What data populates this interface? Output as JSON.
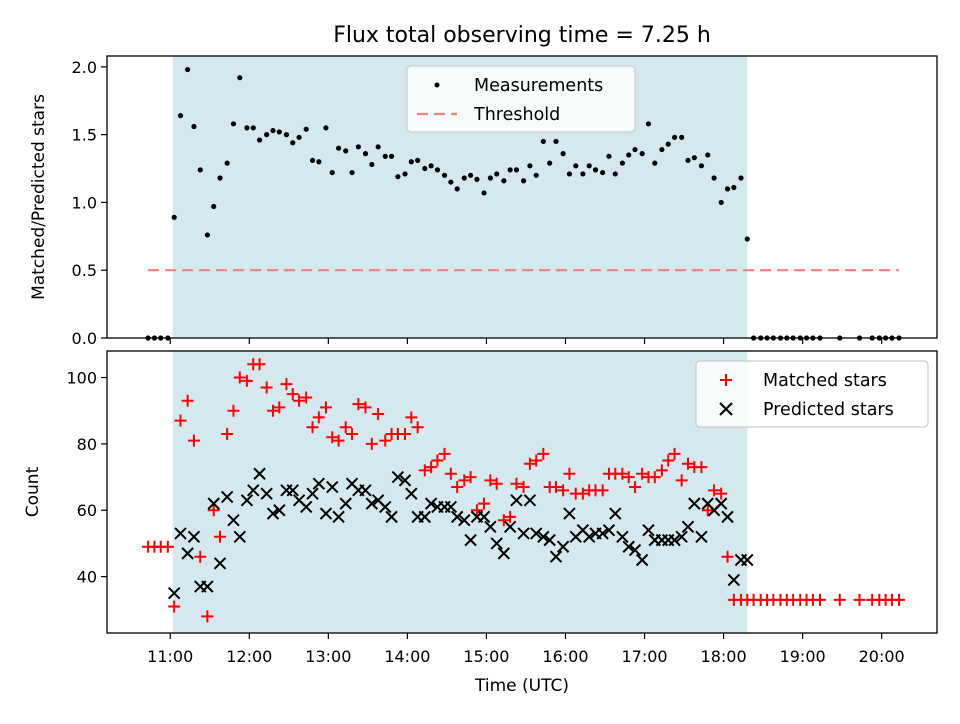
{
  "chart_data": {
    "type": "scatter",
    "title": "Flux total observing time = 7.25 h",
    "xlabel": "Time (UTC)",
    "x_ticks": [
      "11:00",
      "12:00",
      "13:00",
      "14:00",
      "15:00",
      "16:00",
      "17:00",
      "18:00",
      "19:00",
      "20:00"
    ],
    "x_range_hours": [
      10.2,
      20.7
    ],
    "observing_window_hours": [
      11.03,
      18.3
    ],
    "shade_color": "#d3e9ef",
    "panels": [
      {
        "ylabel": "Matched/Predicted stars",
        "ylim": [
          0,
          2.08
        ],
        "y_ticks": [
          "0.0",
          "0.5",
          "1.0",
          "1.5",
          "2.0"
        ],
        "legend_position": "upper center",
        "threshold": {
          "name": "Threshold",
          "value": 0.5,
          "color": "#f47d7d",
          "x_range": [
            10.72,
            20.22
          ]
        },
        "series": [
          {
            "name": "Measurements",
            "marker": "dot",
            "color": "#000000",
            "x": [
              10.72,
              10.8,
              10.88,
              10.97,
              11.05,
              11.13,
              11.22,
              11.3,
              11.38,
              11.47,
              11.55,
              11.63,
              11.72,
              11.8,
              11.88,
              11.97,
              12.05,
              12.13,
              12.22,
              12.3,
              12.38,
              12.47,
              12.55,
              12.63,
              12.72,
              12.8,
              12.88,
              12.97,
              13.05,
              13.13,
              13.22,
              13.3,
              13.38,
              13.47,
              13.55,
              13.63,
              13.72,
              13.8,
              13.88,
              13.97,
              14.05,
              14.13,
              14.22,
              14.3,
              14.38,
              14.47,
              14.55,
              14.63,
              14.72,
              14.8,
              14.88,
              14.97,
              15.05,
              15.13,
              15.22,
              15.3,
              15.38,
              15.47,
              15.55,
              15.63,
              15.72,
              15.8,
              15.88,
              15.97,
              16.05,
              16.13,
              16.22,
              16.3,
              16.38,
              16.47,
              16.55,
              16.63,
              16.72,
              16.8,
              16.88,
              16.97,
              17.05,
              17.13,
              17.22,
              17.3,
              17.38,
              17.47,
              17.55,
              17.63,
              17.72,
              17.8,
              17.88,
              17.97,
              18.05,
              18.13,
              18.22,
              18.3,
              18.38,
              18.47,
              18.55,
              18.63,
              18.72,
              18.8,
              18.88,
              18.97,
              19.05,
              19.13,
              19.22,
              19.47,
              19.72,
              19.88,
              19.97,
              20.05,
              20.13,
              20.22
            ],
            "y": [
              0,
              0,
              0,
              0,
              0.89,
              1.64,
              1.98,
              1.56,
              1.24,
              0.76,
              0.97,
              1.18,
              1.29,
              1.58,
              1.92,
              1.55,
              1.55,
              1.46,
              1.5,
              1.53,
              1.52,
              1.5,
              1.44,
              1.48,
              1.54,
              1.31,
              1.3,
              1.55,
              1.22,
              1.4,
              1.38,
              1.22,
              1.41,
              1.36,
              1.28,
              1.41,
              1.34,
              1.34,
              1.19,
              1.21,
              1.3,
              1.31,
              1.25,
              1.27,
              1.24,
              1.2,
              1.15,
              1.1,
              1.18,
              1.2,
              1.17,
              1.07,
              1.18,
              1.21,
              1.16,
              1.24,
              1.24,
              1.16,
              1.27,
              1.2,
              1.45,
              1.29,
              1.45,
              1.36,
              1.21,
              1.27,
              1.21,
              1.27,
              1.24,
              1.22,
              1.34,
              1.21,
              1.29,
              1.35,
              1.39,
              1.36,
              1.58,
              1.29,
              1.39,
              1.43,
              1.48,
              1.48,
              1.31,
              1.33,
              1.27,
              1.35,
              1.18,
              1.0,
              1.1,
              1.11,
              1.18,
              0.73,
              0,
              0,
              0,
              0,
              0,
              0,
              0,
              0,
              0,
              0,
              0,
              0,
              0,
              0,
              0,
              0,
              0,
              0
            ]
          }
        ]
      },
      {
        "ylabel": "Count",
        "ylim": [
          23,
          108
        ],
        "y_ticks": [
          "40",
          "60",
          "80",
          "100"
        ],
        "legend_position": "upper right",
        "series": [
          {
            "name": "Matched stars",
            "marker": "plus",
            "color": "#ff0000",
            "x": [
              10.72,
              10.8,
              10.88,
              10.97,
              11.05,
              11.13,
              11.22,
              11.3,
              11.38,
              11.47,
              11.55,
              11.63,
              11.72,
              11.8,
              11.88,
              11.97,
              12.05,
              12.13,
              12.22,
              12.3,
              12.38,
              12.47,
              12.55,
              12.63,
              12.72,
              12.8,
              12.88,
              12.97,
              13.05,
              13.13,
              13.22,
              13.3,
              13.38,
              13.47,
              13.55,
              13.63,
              13.72,
              13.8,
              13.88,
              13.97,
              14.05,
              14.13,
              14.22,
              14.3,
              14.38,
              14.47,
              14.55,
              14.63,
              14.72,
              14.8,
              14.88,
              14.97,
              15.05,
              15.13,
              15.22,
              15.3,
              15.38,
              15.47,
              15.55,
              15.63,
              15.72,
              15.8,
              15.88,
              15.97,
              16.05,
              16.13,
              16.22,
              16.3,
              16.38,
              16.47,
              16.55,
              16.63,
              16.72,
              16.8,
              16.88,
              16.97,
              17.05,
              17.13,
              17.22,
              17.3,
              17.38,
              17.47,
              17.55,
              17.63,
              17.72,
              17.8,
              17.88,
              17.97,
              18.05,
              18.13,
              18.22,
              18.3,
              18.38,
              18.47,
              18.55,
              18.63,
              18.72,
              18.8,
              18.88,
              18.97,
              19.05,
              19.13,
              19.22,
              19.47,
              19.72,
              19.88,
              19.97,
              20.05,
              20.13,
              20.22
            ],
            "y": [
              49,
              49,
              49,
              49,
              31,
              87,
              93,
              81,
              46,
              28,
              60,
              52,
              83,
              90,
              100,
              99,
              104,
              104,
              97,
              90,
              91,
              98,
              95,
              93,
              94,
              85,
              88,
              91,
              82,
              81,
              85,
              83,
              92,
              91,
              80,
              89,
              81,
              83,
              83,
              83,
              88,
              85,
              72,
              73,
              75,
              77,
              71,
              67,
              69,
              70,
              60,
              62,
              69,
              68,
              57,
              58,
              68,
              67,
              74,
              75,
              77,
              67,
              67,
              66,
              71,
              65,
              65,
              66,
              66,
              66,
              71,
              71,
              71,
              70,
              67,
              71,
              70,
              70,
              72,
              75,
              77,
              69,
              74,
              73,
              73,
              60,
              66,
              65,
              46,
              33,
              33,
              33,
              33,
              33,
              33,
              33,
              33,
              33,
              33,
              33,
              33,
              33,
              33,
              33,
              33,
              33,
              33,
              33,
              33,
              33
            ]
          },
          {
            "name": "Predicted stars",
            "marker": "x",
            "color": "#000000",
            "x": [
              11.05,
              11.13,
              11.22,
              11.3,
              11.38,
              11.47,
              11.55,
              11.63,
              11.72,
              11.8,
              11.88,
              11.97,
              12.05,
              12.13,
              12.22,
              12.3,
              12.38,
              12.47,
              12.55,
              12.63,
              12.72,
              12.8,
              12.88,
              12.97,
              13.05,
              13.13,
              13.22,
              13.3,
              13.38,
              13.47,
              13.55,
              13.63,
              13.72,
              13.8,
              13.88,
              13.97,
              14.05,
              14.13,
              14.22,
              14.3,
              14.38,
              14.47,
              14.55,
              14.63,
              14.72,
              14.8,
              14.88,
              14.97,
              15.05,
              15.13,
              15.22,
              15.3,
              15.38,
              15.47,
              15.55,
              15.63,
              15.72,
              15.8,
              15.88,
              15.97,
              16.05,
              16.13,
              16.22,
              16.3,
              16.38,
              16.47,
              16.55,
              16.63,
              16.72,
              16.8,
              16.88,
              16.97,
              17.05,
              17.13,
              17.22,
              17.3,
              17.38,
              17.47,
              17.55,
              17.63,
              17.72,
              17.8,
              17.88,
              17.97,
              18.05,
              18.13,
              18.22,
              18.3
            ],
            "y": [
              35,
              53,
              47,
              52,
              37,
              37,
              62,
              44,
              64,
              57,
              52,
              63,
              66,
              71,
              65,
              59,
              60,
              66,
              66,
              63,
              61,
              65,
              68,
              59,
              67,
              58,
              62,
              68,
              66,
              66,
              62,
              63,
              61,
              58,
              70,
              69,
              65,
              58,
              58,
              62,
              61,
              61,
              61,
              58,
              57,
              51,
              58,
              58,
              55,
              50,
              47,
              55,
              63,
              53,
              63,
              53,
              52,
              51,
              46,
              49,
              59,
              52,
              54,
              52,
              53,
              53,
              54,
              59,
              52,
              49,
              48,
              45,
              54,
              51,
              51,
              51,
              51,
              52,
              55,
              62,
              52,
              62,
              60,
              62,
              58,
              39,
              45,
              45
            ]
          }
        ]
      }
    ]
  }
}
